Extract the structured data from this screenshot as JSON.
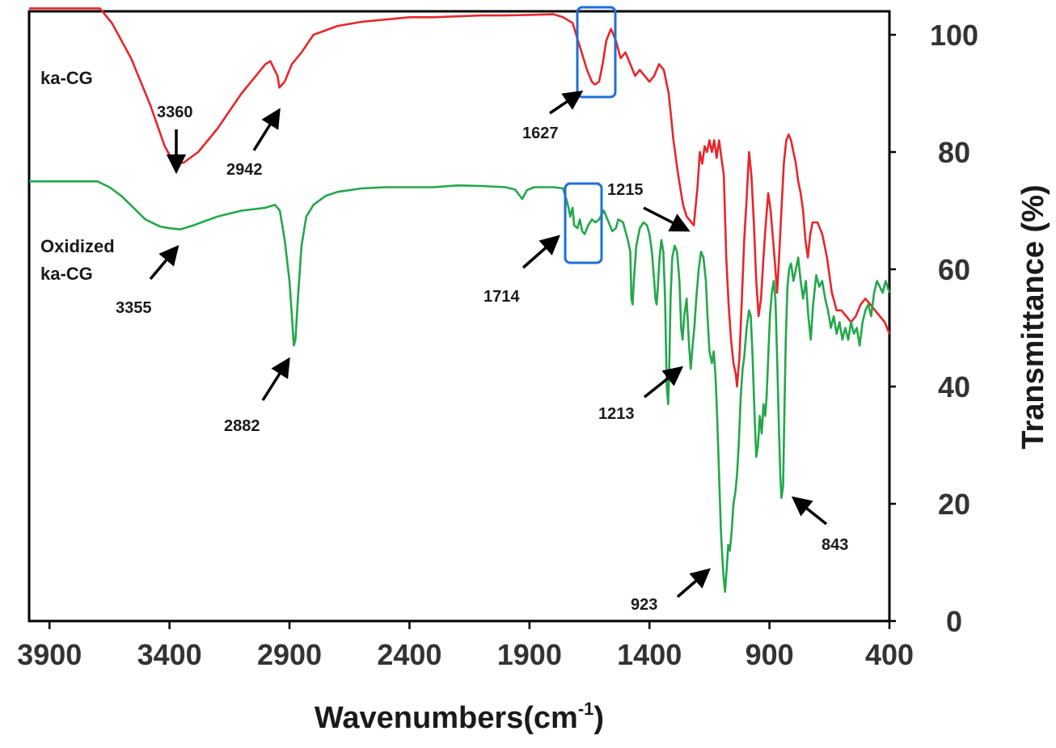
{
  "chart_data": {
    "type": "line",
    "xlabel_main": "Wavenumbers(cm",
    "xlabel_sup": "-1",
    "xlabel_end": ")",
    "ylabel": "Transmittance (%)",
    "xlim": [
      3985,
      400
    ],
    "ylim": [
      0,
      104
    ],
    "x_reversed": true,
    "grid": false,
    "x_ticks": [
      3900,
      3400,
      2900,
      2400,
      1900,
      1400,
      900,
      400
    ],
    "y_ticks": [
      0,
      20,
      40,
      60,
      80,
      100
    ],
    "series": [
      {
        "name": "ka-CG",
        "color": "#e8262b",
        "points": [
          [
            3985,
            104.5
          ],
          [
            3690,
            104.5
          ],
          [
            3640,
            102
          ],
          [
            3560,
            96
          ],
          [
            3480,
            88
          ],
          [
            3420,
            81
          ],
          [
            3380,
            78
          ],
          [
            3340,
            78.2
          ],
          [
            3280,
            80
          ],
          [
            3200,
            84
          ],
          [
            3100,
            90
          ],
          [
            3040,
            93
          ],
          [
            3000,
            95
          ],
          [
            2980,
            95.5
          ],
          [
            2950,
            93
          ],
          [
            2942,
            91
          ],
          [
            2920,
            92
          ],
          [
            2890,
            95
          ],
          [
            2850,
            97
          ],
          [
            2800,
            100
          ],
          [
            2700,
            101.5
          ],
          [
            2600,
            102.2
          ],
          [
            2500,
            102.6
          ],
          [
            2400,
            103
          ],
          [
            2300,
            103
          ],
          [
            2100,
            103.3
          ],
          [
            2000,
            103.3
          ],
          [
            1900,
            103.4
          ],
          [
            1800,
            103.5
          ],
          [
            1760,
            103
          ],
          [
            1720,
            102
          ],
          [
            1690,
            98
          ],
          [
            1660,
            94
          ],
          [
            1640,
            92
          ],
          [
            1627,
            91.5
          ],
          [
            1610,
            92
          ],
          [
            1595,
            95
          ],
          [
            1580,
            99
          ],
          [
            1560,
            101
          ],
          [
            1540,
            99
          ],
          [
            1520,
            96
          ],
          [
            1500,
            97
          ],
          [
            1480,
            95
          ],
          [
            1460,
            93
          ],
          [
            1440,
            94
          ],
          [
            1420,
            93
          ],
          [
            1400,
            92
          ],
          [
            1380,
            93
          ],
          [
            1360,
            95
          ],
          [
            1340,
            94
          ],
          [
            1320,
            90
          ],
          [
            1300,
            82
          ],
          [
            1280,
            76
          ],
          [
            1260,
            71
          ],
          [
            1245,
            69
          ],
          [
            1225,
            68
          ],
          [
            1215,
            67.5
          ],
          [
            1200,
            74
          ],
          [
            1190,
            80
          ],
          [
            1180,
            78
          ],
          [
            1170,
            81
          ],
          [
            1160,
            80
          ],
          [
            1150,
            82
          ],
          [
            1140,
            80
          ],
          [
            1130,
            82
          ],
          [
            1120,
            79
          ],
          [
            1110,
            82
          ],
          [
            1100,
            79
          ],
          [
            1090,
            76
          ],
          [
            1080,
            62
          ],
          [
            1070,
            54
          ],
          [
            1060,
            48
          ],
          [
            1050,
            44
          ],
          [
            1040,
            42
          ],
          [
            1035,
            40
          ],
          [
            1025,
            45
          ],
          [
            1015,
            55
          ],
          [
            1005,
            65
          ],
          [
            995,
            72
          ],
          [
            985,
            80
          ],
          [
            975,
            76
          ],
          [
            965,
            68
          ],
          [
            955,
            58
          ],
          [
            945,
            52
          ],
          [
            935,
            55
          ],
          [
            925,
            62
          ],
          [
            915,
            68
          ],
          [
            905,
            73
          ],
          [
            895,
            70
          ],
          [
            885,
            65
          ],
          [
            875,
            60
          ],
          [
            868,
            56
          ],
          [
            860,
            62
          ],
          [
            850,
            70
          ],
          [
            840,
            78
          ],
          [
            830,
            82
          ],
          [
            820,
            83
          ],
          [
            810,
            82
          ],
          [
            800,
            80
          ],
          [
            790,
            78
          ],
          [
            780,
            75
          ],
          [
            770,
            73
          ],
          [
            760,
            70
          ],
          [
            750,
            65
          ],
          [
            740,
            62
          ],
          [
            730,
            66
          ],
          [
            720,
            68
          ],
          [
            700,
            68
          ],
          [
            680,
            66
          ],
          [
            660,
            62
          ],
          [
            640,
            56
          ],
          [
            620,
            53
          ],
          [
            600,
            53
          ],
          [
            580,
            52
          ],
          [
            560,
            51
          ],
          [
            540,
            52
          ],
          [
            520,
            54
          ],
          [
            500,
            55
          ],
          [
            480,
            54
          ],
          [
            460,
            53
          ],
          [
            440,
            52
          ],
          [
            420,
            51
          ],
          [
            400,
            49
          ]
        ]
      },
      {
        "name": "Oxidized ka-CG",
        "color": "#22a84a",
        "points": [
          [
            3985,
            75
          ],
          [
            3700,
            75
          ],
          [
            3650,
            74
          ],
          [
            3600,
            72.5
          ],
          [
            3550,
            70.5
          ],
          [
            3500,
            68.5
          ],
          [
            3440,
            67.3
          ],
          [
            3400,
            67
          ],
          [
            3355,
            66.8
          ],
          [
            3300,
            67.5
          ],
          [
            3200,
            69
          ],
          [
            3100,
            70
          ],
          [
            3000,
            70.5
          ],
          [
            2960,
            71
          ],
          [
            2940,
            70
          ],
          [
            2920,
            65
          ],
          [
            2900,
            58
          ],
          [
            2890,
            52
          ],
          [
            2882,
            47
          ],
          [
            2875,
            48
          ],
          [
            2865,
            55
          ],
          [
            2850,
            64
          ],
          [
            2830,
            69
          ],
          [
            2800,
            71
          ],
          [
            2750,
            72.5
          ],
          [
            2700,
            73.2
          ],
          [
            2600,
            73.8
          ],
          [
            2500,
            74
          ],
          [
            2400,
            74
          ],
          [
            2300,
            74
          ],
          [
            2200,
            74.3
          ],
          [
            2100,
            74.2
          ],
          [
            2000,
            74
          ],
          [
            1960,
            73.6
          ],
          [
            1930,
            72
          ],
          [
            1910,
            73.5
          ],
          [
            1880,
            74
          ],
          [
            1800,
            74
          ],
          [
            1760,
            73.8
          ],
          [
            1740,
            71
          ],
          [
            1730,
            69
          ],
          [
            1720,
            70.5
          ],
          [
            1714,
            67.5
          ],
          [
            1700,
            67
          ],
          [
            1690,
            68.5
          ],
          [
            1680,
            66.5
          ],
          [
            1670,
            66
          ],
          [
            1655,
            67.5
          ],
          [
            1640,
            68.5
          ],
          [
            1625,
            68
          ],
          [
            1610,
            68.5
          ],
          [
            1590,
            70
          ],
          [
            1570,
            68
          ],
          [
            1555,
            66.5
          ],
          [
            1540,
            67
          ],
          [
            1530,
            68.5
          ],
          [
            1510,
            68
          ],
          [
            1500,
            66.5
          ],
          [
            1490,
            65
          ],
          [
            1480,
            63
          ],
          [
            1475,
            55
          ],
          [
            1470,
            54
          ],
          [
            1465,
            58
          ],
          [
            1455,
            64
          ],
          [
            1440,
            67
          ],
          [
            1425,
            68
          ],
          [
            1410,
            67.5
          ],
          [
            1400,
            66
          ],
          [
            1390,
            63
          ],
          [
            1380,
            58
          ],
          [
            1375,
            55
          ],
          [
            1370,
            54
          ],
          [
            1365,
            57
          ],
          [
            1358,
            62
          ],
          [
            1350,
            65
          ],
          [
            1342,
            63
          ],
          [
            1335,
            55
          ],
          [
            1328,
            40
          ],
          [
            1322,
            37
          ],
          [
            1318,
            42
          ],
          [
            1312,
            55
          ],
          [
            1305,
            62
          ],
          [
            1295,
            64
          ],
          [
            1285,
            63
          ],
          [
            1275,
            58
          ],
          [
            1268,
            50
          ],
          [
            1262,
            48
          ],
          [
            1255,
            52
          ],
          [
            1245,
            55
          ],
          [
            1235,
            47
          ],
          [
            1228,
            43
          ],
          [
            1220,
            47
          ],
          [
            1213,
            50
          ],
          [
            1205,
            55
          ],
          [
            1195,
            60
          ],
          [
            1185,
            63
          ],
          [
            1175,
            62
          ],
          [
            1165,
            58
          ],
          [
            1158,
            52
          ],
          [
            1150,
            46
          ],
          [
            1140,
            44
          ],
          [
            1132,
            46
          ],
          [
            1125,
            42
          ],
          [
            1118,
            35
          ],
          [
            1110,
            25
          ],
          [
            1102,
            15
          ],
          [
            1095,
            10
          ],
          [
            1090,
            7
          ],
          [
            1085,
            5
          ],
          [
            1078,
            9
          ],
          [
            1072,
            13
          ],
          [
            1065,
            12
          ],
          [
            1058,
            15
          ],
          [
            1050,
            20
          ],
          [
            1042,
            22
          ],
          [
            1035,
            25
          ],
          [
            1028,
            30
          ],
          [
            1020,
            38
          ],
          [
            1012,
            43
          ],
          [
            1005,
            45
          ],
          [
            995,
            50
          ],
          [
            985,
            53
          ],
          [
            978,
            52
          ],
          [
            970,
            45
          ],
          [
            962,
            35
          ],
          [
            955,
            28
          ],
          [
            948,
            30
          ],
          [
            940,
            35
          ],
          [
            932,
            32
          ],
          [
            925,
            37
          ],
          [
            918,
            35
          ],
          [
            912,
            38
          ],
          [
            905,
            45
          ],
          [
            898,
            52
          ],
          [
            890,
            56
          ],
          [
            882,
            58
          ],
          [
            875,
            55
          ],
          [
            868,
            45
          ],
          [
            860,
            32
          ],
          [
            855,
            25
          ],
          [
            850,
            21
          ],
          [
            843,
            23
          ],
          [
            838,
            35
          ],
          [
            832,
            48
          ],
          [
            825,
            57
          ],
          [
            818,
            60
          ],
          [
            810,
            61
          ],
          [
            800,
            58
          ],
          [
            790,
            60
          ],
          [
            780,
            62
          ],
          [
            770,
            58
          ],
          [
            760,
            55
          ],
          [
            748,
            58
          ],
          [
            738,
            52
          ],
          [
            728,
            48
          ],
          [
            718,
            54
          ],
          [
            705,
            59
          ],
          [
            692,
            57
          ],
          [
            680,
            58
          ],
          [
            668,
            55
          ],
          [
            656,
            53
          ],
          [
            644,
            50
          ],
          [
            632,
            52
          ],
          [
            620,
            49
          ],
          [
            608,
            51
          ],
          [
            596,
            48
          ],
          [
            584,
            50
          ],
          [
            572,
            48
          ],
          [
            560,
            51
          ],
          [
            548,
            49
          ],
          [
            536,
            50
          ],
          [
            524,
            47
          ],
          [
            512,
            51
          ],
          [
            500,
            53
          ],
          [
            488,
            54
          ],
          [
            476,
            52
          ],
          [
            464,
            56
          ],
          [
            452,
            58
          ],
          [
            440,
            57
          ],
          [
            428,
            56
          ],
          [
            416,
            58
          ],
          [
            400,
            56
          ]
        ]
      }
    ],
    "annotations": [
      {
        "text": "ka-CG",
        "kind": "series"
      },
      {
        "text": "Oxidized",
        "kind": "series"
      },
      {
        "text": "ka-CG",
        "kind": "series"
      },
      {
        "text": "3360",
        "kind": "peak"
      },
      {
        "text": "2942",
        "kind": "peak"
      },
      {
        "text": "1627",
        "kind": "peak"
      },
      {
        "text": "1215",
        "kind": "peak"
      },
      {
        "text": "3355",
        "kind": "peak"
      },
      {
        "text": "2882",
        "kind": "peak"
      },
      {
        "text": "1714",
        "kind": "peak"
      },
      {
        "text": "1213",
        "kind": "peak"
      },
      {
        "text": "923",
        "kind": "peak"
      },
      {
        "text": "843",
        "kind": "peak"
      }
    ],
    "highlight_color": "#1e6fd9",
    "arrow_color": "#000000"
  }
}
